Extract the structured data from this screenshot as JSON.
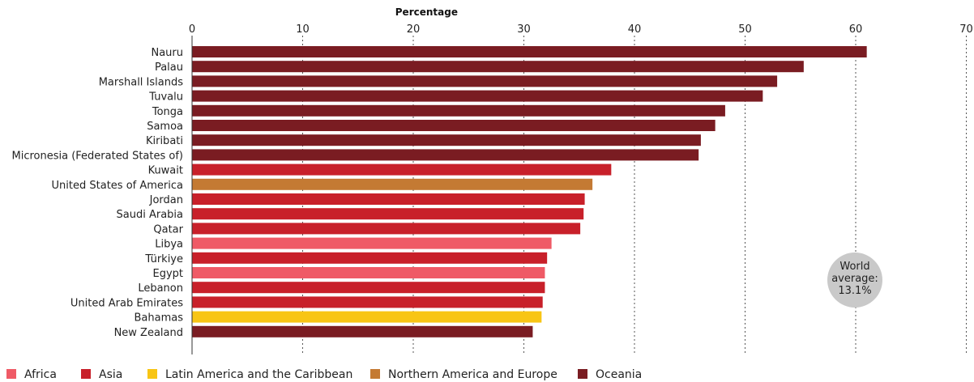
{
  "chart_data": {
    "type": "bar",
    "orientation": "horizontal",
    "title": "",
    "xlabel": "Percentage",
    "ylabel": "",
    "xlim": [
      0,
      70
    ],
    "xticks": [
      0,
      10,
      20,
      30,
      40,
      50,
      60,
      70
    ],
    "grid": "vertical dotted",
    "legend_position": "bottom-left",
    "regions": [
      {
        "name": "Africa",
        "color": "#ef5a66"
      },
      {
        "name": "Asia",
        "color": "#c8202a"
      },
      {
        "name": "Latin America and the Caribbean",
        "color": "#f8c514"
      },
      {
        "name": "Northern America and Europe",
        "color": "#c47a33"
      },
      {
        "name": "Oceania",
        "color": "#7a1c22"
      }
    ],
    "bars": [
      {
        "label": "Nauru",
        "value": 61.0,
        "region": "Oceania"
      },
      {
        "label": "Palau",
        "value": 55.3,
        "region": "Oceania"
      },
      {
        "label": "Marshall Islands",
        "value": 52.9,
        "region": "Oceania"
      },
      {
        "label": "Tuvalu",
        "value": 51.6,
        "region": "Oceania"
      },
      {
        "label": "Tonga",
        "value": 48.2,
        "region": "Oceania"
      },
      {
        "label": "Samoa",
        "value": 47.3,
        "region": "Oceania"
      },
      {
        "label": "Kiribati",
        "value": 46.0,
        "region": "Oceania"
      },
      {
        "label": "Micronesia (Federated States of)",
        "value": 45.8,
        "region": "Oceania"
      },
      {
        "label": "Kuwait",
        "value": 37.9,
        "region": "Asia"
      },
      {
        "label": "United States of America",
        "value": 36.2,
        "region": "Northern America and Europe"
      },
      {
        "label": "Jordan",
        "value": 35.5,
        "region": "Asia"
      },
      {
        "label": "Saudi Arabia",
        "value": 35.4,
        "region": "Asia"
      },
      {
        "label": "Qatar",
        "value": 35.1,
        "region": "Asia"
      },
      {
        "label": "Libya",
        "value": 32.5,
        "region": "Africa"
      },
      {
        "label": "Türkiye",
        "value": 32.1,
        "region": "Asia"
      },
      {
        "label": "Egypt",
        "value": 31.9,
        "region": "Africa"
      },
      {
        "label": "Lebanon",
        "value": 31.9,
        "region": "Asia"
      },
      {
        "label": "United Arab Emirates",
        "value": 31.7,
        "region": "Asia"
      },
      {
        "label": "Bahamas",
        "value": 31.6,
        "region": "Latin America and the Caribbean"
      },
      {
        "label": "New Zealand",
        "value": 30.8,
        "region": "Oceania"
      }
    ],
    "annotation": {
      "lines": [
        "World",
        "average:",
        "13.1%"
      ],
      "bubble_color": "#c9c9c9"
    }
  }
}
